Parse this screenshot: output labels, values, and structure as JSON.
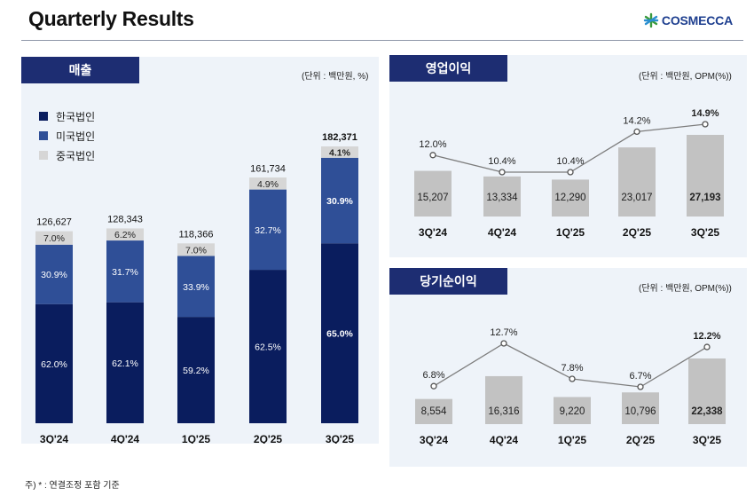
{
  "header": {
    "title": "Quarterly Results",
    "logo_text": "COSMECCA"
  },
  "colors": {
    "korea": "#0a1d5e",
    "usa": "#2f4f97",
    "china": "#d6d6d6",
    "bar_gray": "#c2c2c2",
    "line": "#7d7d7d",
    "tab": "#1d2d72",
    "panel": "#eef3f9"
  },
  "revenue": {
    "tab_label": "매출",
    "unit": "(단위 : 백만원, %)",
    "legend": [
      {
        "label": "한국법인",
        "color_key": "korea"
      },
      {
        "label": "미국법인",
        "color_key": "usa"
      },
      {
        "label": "중국법인",
        "color_key": "china"
      }
    ]
  },
  "op_income": {
    "tab_label": "영업이익",
    "unit": "(단위 : 백만원, OPM(%))"
  },
  "net_income": {
    "tab_label": "당기순이익",
    "unit": "(단위 : 백만원, OPM(%))"
  },
  "footnote": "주) * : 연결조정 포함 기준",
  "chart_data": [
    {
      "id": "revenue",
      "type": "bar",
      "stacked": true,
      "title": "매출",
      "categories": [
        "3Q'24",
        "4Q'24",
        "1Q'25",
        "2Q'25",
        "3Q'25"
      ],
      "totals": [
        126627,
        128343,
        118366,
        161734,
        182371
      ],
      "total_labels": [
        "126,627",
        "128,343",
        "118,366",
        "161,734",
        "182,371"
      ],
      "series": [
        {
          "name": "한국법인",
          "color_key": "korea",
          "share_pct": [
            62.0,
            62.1,
            59.2,
            62.5,
            65.0
          ],
          "labels": [
            "62.0%",
            "62.1%",
            "59.2%",
            "62.5%",
            "65.0%"
          ]
        },
        {
          "name": "미국법인",
          "color_key": "usa",
          "share_pct": [
            30.9,
            31.7,
            33.9,
            32.7,
            30.9
          ],
          "labels": [
            "30.9%",
            "31.7%",
            "33.9%",
            "32.7%",
            "30.9%"
          ]
        },
        {
          "name": "중국법인",
          "color_key": "china",
          "share_pct": [
            7.0,
            6.2,
            7.0,
            4.9,
            4.1
          ],
          "labels": [
            "7.0%",
            "6.2%",
            "7.0%",
            "4.9%",
            "4.1%"
          ]
        }
      ],
      "highlight_last": true
    },
    {
      "id": "op_income",
      "type": "bar+line",
      "title": "영업이익",
      "categories": [
        "3Q'24",
        "4Q'24",
        "1Q'25",
        "2Q'25",
        "3Q'25"
      ],
      "bar_values": [
        15207,
        13334,
        12290,
        23017,
        27193
      ],
      "bar_labels": [
        "15,207",
        "13,334",
        "12,290",
        "23,017",
        "27,193"
      ],
      "margin_pct": [
        12.0,
        10.4,
        10.4,
        14.2,
        14.9
      ],
      "margin_labels": [
        "12.0%",
        "10.4%",
        "10.4%",
        "14.2%",
        "14.9%"
      ],
      "highlight_last": true
    },
    {
      "id": "net_income",
      "type": "bar+line",
      "title": "당기순이익",
      "categories": [
        "3Q'24",
        "4Q'24",
        "1Q'25",
        "2Q'25",
        "3Q'25"
      ],
      "bar_values": [
        8554,
        16316,
        9220,
        10796,
        22338
      ],
      "bar_labels": [
        "8,554",
        "16,316",
        "9,220",
        "10,796",
        "22,338"
      ],
      "margin_pct": [
        6.8,
        12.7,
        7.8,
        6.7,
        12.2
      ],
      "margin_labels": [
        "6.8%",
        "12.7%",
        "7.8%",
        "6.7%",
        "12.2%"
      ],
      "highlight_last": true
    }
  ]
}
